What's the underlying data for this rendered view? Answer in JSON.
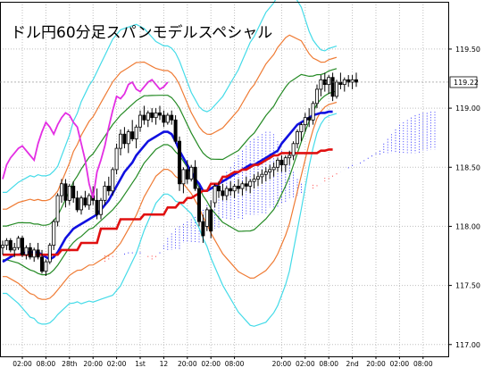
{
  "chart_data": {
    "type": "candlestick",
    "title": "ドル円60分足スパンモデルスペシャル",
    "ylim": [
      116.9,
      119.9
    ],
    "yticks": [
      117.0,
      117.5,
      118.0,
      118.5,
      119.0,
      119.5
    ],
    "ytick_labels": [
      "117.00",
      "117.50",
      "118.00",
      "118.50",
      "119.00",
      "119.50"
    ],
    "last_price": 119.22,
    "last_price_label": "119.22",
    "bar_count": 114,
    "grid": true,
    "x_labels": [
      {
        "label": "02:00",
        "bar": 5
      },
      {
        "label": "08:00",
        "bar": 11
      },
      {
        "label": "28th",
        "bar": 17
      },
      {
        "label": "20:00",
        "bar": 23
      },
      {
        "label": "02:00",
        "bar": 29
      },
      {
        "label": "1st",
        "bar": 35
      },
      {
        "label": "12",
        "bar": 41
      },
      {
        "label": "20:00",
        "bar": 47
      },
      {
        "label": "02:00",
        "bar": 53
      },
      {
        "label": "08:00",
        "bar": 59
      },
      {
        "label": "20:00",
        "bar": 71
      },
      {
        "label": "02:00",
        "bar": 77
      },
      {
        "label": "08:00",
        "bar": 83
      },
      {
        "label": "2nd",
        "bar": 89
      },
      {
        "label": "20:00",
        "bar": 95
      },
      {
        "label": "02:00",
        "bar": 101
      },
      {
        "label": "08:00",
        "bar": 107
      }
    ],
    "candles": [
      [
        0,
        117.82,
        117.88,
        117.76,
        117.84
      ],
      [
        1,
        117.84,
        117.9,
        117.8,
        117.88
      ],
      [
        2,
        117.88,
        117.9,
        117.78,
        117.8
      ],
      [
        3,
        117.8,
        117.86,
        117.74,
        117.82
      ],
      [
        4,
        117.82,
        117.92,
        117.8,
        117.9
      ],
      [
        5,
        117.9,
        117.92,
        117.74,
        117.76
      ],
      [
        6,
        117.76,
        117.84,
        117.72,
        117.82
      ],
      [
        7,
        117.82,
        117.86,
        117.72,
        117.74
      ],
      [
        8,
        117.74,
        117.82,
        117.7,
        117.8
      ],
      [
        9,
        117.8,
        117.86,
        117.72,
        117.74
      ],
      [
        10,
        117.74,
        117.8,
        117.6,
        117.62
      ],
      [
        11,
        117.62,
        117.72,
        117.58,
        117.7
      ],
      [
        12,
        117.7,
        117.86,
        117.68,
        117.84
      ],
      [
        13,
        117.84,
        118.06,
        117.8,
        118.04
      ],
      [
        14,
        118.04,
        118.28,
        118.0,
        118.26
      ],
      [
        15,
        118.26,
        118.4,
        118.2,
        118.36
      ],
      [
        16,
        118.36,
        118.4,
        118.16,
        118.22
      ],
      [
        17,
        118.22,
        118.36,
        118.18,
        118.34
      ],
      [
        18,
        118.34,
        118.38,
        118.2,
        118.24
      ],
      [
        19,
        118.24,
        118.3,
        118.12,
        118.14
      ],
      [
        20,
        118.14,
        118.26,
        118.1,
        118.24
      ],
      [
        21,
        118.24,
        118.3,
        118.16,
        118.18
      ],
      [
        22,
        118.18,
        118.28,
        118.14,
        118.26
      ],
      [
        23,
        118.26,
        118.34,
        118.18,
        118.22
      ],
      [
        24,
        118.22,
        118.32,
        118.06,
        118.1
      ],
      [
        25,
        118.1,
        118.24,
        118.06,
        118.22
      ],
      [
        26,
        118.22,
        118.38,
        118.18,
        118.34
      ],
      [
        27,
        118.34,
        118.42,
        118.26,
        118.3
      ],
      [
        28,
        118.3,
        118.5,
        118.26,
        118.48
      ],
      [
        29,
        118.48,
        118.7,
        118.44,
        118.66
      ],
      [
        30,
        118.66,
        118.82,
        118.6,
        118.78
      ],
      [
        31,
        118.78,
        118.84,
        118.66,
        118.7
      ],
      [
        32,
        118.7,
        118.82,
        118.62,
        118.8
      ],
      [
        33,
        118.8,
        118.9,
        118.72,
        118.74
      ],
      [
        34,
        118.74,
        118.86,
        118.66,
        118.84
      ],
      [
        35,
        118.84,
        118.98,
        118.8,
        118.94
      ],
      [
        36,
        118.94,
        119.02,
        118.86,
        118.9
      ],
      [
        37,
        118.9,
        118.98,
        118.84,
        118.96
      ],
      [
        38,
        118.96,
        119.0,
        118.88,
        118.92
      ],
      [
        39,
        118.92,
        119.0,
        118.86,
        118.96
      ],
      [
        40,
        118.96,
        119.02,
        118.9,
        118.94
      ],
      [
        41,
        118.94,
        118.98,
        118.84,
        118.88
      ],
      [
        42,
        118.88,
        118.96,
        118.86,
        118.94
      ],
      [
        43,
        118.94,
        118.98,
        118.86,
        118.9
      ],
      [
        44,
        118.9,
        118.94,
        118.7,
        118.72
      ],
      [
        45,
        118.72,
        118.76,
        118.3,
        118.36
      ],
      [
        46,
        118.36,
        118.5,
        118.28,
        118.48
      ],
      [
        47,
        118.48,
        118.56,
        118.36,
        118.4
      ],
      [
        48,
        118.4,
        118.52,
        118.38,
        118.5
      ],
      [
        49,
        118.5,
        118.56,
        118.3,
        118.32
      ],
      [
        50,
        118.32,
        118.34,
        118.0,
        118.04
      ],
      [
        51,
        118.04,
        118.1,
        117.86,
        117.92
      ],
      [
        52,
        118.0,
        118.16,
        117.96,
        118.14
      ],
      [
        53,
        118.14,
        118.22,
        117.9,
        117.96
      ],
      [
        54,
        118.2,
        118.36,
        118.16,
        118.34
      ],
      [
        55,
        118.34,
        118.38,
        118.24,
        118.3
      ],
      [
        56,
        118.3,
        118.36,
        118.22,
        118.26
      ],
      [
        57,
        118.26,
        118.34,
        118.22,
        118.32
      ],
      [
        58,
        118.32,
        118.38,
        118.26,
        118.3
      ],
      [
        59,
        118.3,
        118.36,
        118.24,
        118.34
      ],
      [
        60,
        118.34,
        118.4,
        118.28,
        118.32
      ],
      [
        61,
        118.32,
        118.38,
        118.26,
        118.36
      ],
      [
        62,
        118.36,
        118.42,
        118.3,
        118.34
      ],
      [
        63,
        118.34,
        118.4,
        118.28,
        118.38
      ],
      [
        64,
        118.38,
        118.44,
        118.32,
        118.4
      ],
      [
        65,
        118.4,
        118.46,
        118.34,
        118.42
      ],
      [
        66,
        118.42,
        118.48,
        118.36,
        118.44
      ],
      [
        67,
        118.44,
        118.5,
        118.38,
        118.46
      ],
      [
        68,
        118.46,
        118.52,
        118.4,
        118.48
      ],
      [
        69,
        118.48,
        118.54,
        118.42,
        118.5
      ],
      [
        70,
        118.5,
        118.58,
        118.46,
        118.56
      ],
      [
        71,
        118.56,
        118.6,
        118.46,
        118.52
      ],
      [
        72,
        118.52,
        118.6,
        118.46,
        118.58
      ],
      [
        73,
        118.58,
        118.64,
        118.52,
        118.6
      ],
      [
        74,
        118.6,
        118.72,
        118.56,
        118.7
      ],
      [
        75,
        118.7,
        118.82,
        118.66,
        118.8
      ],
      [
        76,
        118.8,
        118.88,
        118.72,
        118.86
      ],
      [
        77,
        118.86,
        118.96,
        118.8,
        118.92
      ],
      [
        78,
        118.92,
        119.0,
        118.84,
        118.9
      ],
      [
        79,
        118.9,
        119.06,
        118.86,
        119.04
      ],
      [
        80,
        119.04,
        119.2,
        119.0,
        119.16
      ],
      [
        81,
        119.16,
        119.28,
        119.1,
        119.24
      ],
      [
        82,
        119.24,
        119.3,
        119.14,
        119.2
      ],
      [
        83,
        119.2,
        119.28,
        119.12,
        119.26
      ],
      [
        84,
        119.26,
        119.3,
        119.06,
        119.1
      ],
      [
        85,
        119.1,
        119.24,
        119.08,
        119.22
      ],
      [
        86,
        119.22,
        119.3,
        119.16,
        119.2
      ],
      [
        87,
        119.2,
        119.26,
        119.14,
        119.24
      ],
      [
        88,
        119.24,
        119.28,
        119.18,
        119.22
      ],
      [
        89,
        119.22,
        119.28,
        119.16,
        119.24
      ],
      [
        90,
        119.24,
        119.3,
        119.18,
        119.22
      ]
    ],
    "span_a": [
      117.7,
      117.72,
      117.74,
      117.76,
      117.76,
      117.77,
      117.78,
      117.78,
      117.78,
      117.78,
      117.76,
      117.74,
      117.72,
      117.74,
      117.78,
      117.84,
      117.9,
      117.94,
      117.98,
      118.0,
      118.02,
      118.04,
      118.06,
      118.08,
      118.1,
      118.14,
      118.18,
      118.22,
      118.28,
      118.34,
      118.4,
      118.46,
      118.5,
      118.54,
      118.6,
      118.64,
      118.68,
      118.72,
      118.74,
      118.76,
      118.78,
      118.8,
      118.8,
      118.78,
      118.72,
      118.64,
      118.58,
      118.52,
      118.46,
      118.4,
      118.36,
      118.3,
      118.3,
      118.32,
      118.34,
      118.36,
      118.38,
      118.4,
      118.42,
      118.44,
      118.46,
      118.48,
      118.5,
      118.52,
      118.52,
      118.54,
      118.56,
      118.58,
      118.6,
      118.62,
      118.64,
      118.7,
      118.74,
      118.78,
      118.82,
      118.86,
      118.88,
      118.9,
      118.92,
      118.94,
      118.95,
      118.96,
      118.96,
      118.97,
      118.97
    ],
    "span_b": [
      117.76,
      117.76,
      117.76,
      117.76,
      117.76,
      117.76,
      117.76,
      117.76,
      117.76,
      117.76,
      117.76,
      117.76,
      117.76,
      117.76,
      117.76,
      117.8,
      117.8,
      117.8,
      117.8,
      117.8,
      117.86,
      117.86,
      117.86,
      117.86,
      117.86,
      117.98,
      117.98,
      117.98,
      117.98,
      117.98,
      118.06,
      118.06,
      118.06,
      118.06,
      118.06,
      118.06,
      118.1,
      118.1,
      118.1,
      118.1,
      118.1,
      118.1,
      118.16,
      118.16,
      118.16,
      118.2,
      118.2,
      118.24,
      118.24,
      118.26,
      118.28,
      118.3,
      118.3,
      118.36,
      118.36,
      118.36,
      118.42,
      118.42,
      118.44,
      118.46,
      118.46,
      118.48,
      118.48,
      118.5,
      118.52,
      118.52,
      118.54,
      118.56,
      118.58,
      118.6,
      118.6,
      118.62,
      118.62,
      118.62,
      118.62,
      118.62,
      118.62,
      118.62,
      118.62,
      118.62,
      118.62,
      118.64,
      118.64,
      118.65,
      118.65
    ],
    "chikou": [
      118.4,
      118.52,
      118.58,
      118.62,
      118.66,
      118.68,
      118.64,
      118.6,
      118.56,
      118.7,
      118.8,
      118.88,
      118.84,
      118.78,
      118.86,
      118.92,
      118.96,
      118.94,
      118.88,
      118.84,
      118.7,
      118.56,
      118.36,
      118.24,
      118.46,
      118.56,
      118.68,
      118.84,
      118.98,
      119.1,
      119.08,
      119.12,
      119.2,
      119.22,
      119.16,
      119.14,
      119.18,
      119.22,
      119.24,
      119.2,
      119.16,
      119.18,
      119.22
    ],
    "ma_center": [
      117.86,
      117.86,
      117.86,
      117.86,
      117.86,
      117.85,
      117.84,
      117.83,
      117.82,
      117.81,
      117.8,
      117.8,
      117.81,
      117.84,
      117.88,
      117.94,
      118.0,
      118.06,
      118.12,
      118.16,
      118.2,
      118.24,
      118.28,
      118.3,
      118.34,
      118.38,
      118.42,
      118.46,
      118.5,
      118.54,
      118.58,
      118.62,
      118.66,
      118.7,
      118.74,
      118.78,
      118.82,
      118.84,
      118.86,
      118.88,
      118.89,
      118.9,
      118.9,
      118.88,
      118.84,
      118.8,
      118.74,
      118.68,
      118.62,
      118.56,
      118.5,
      118.44,
      118.4,
      118.36,
      118.34,
      118.32,
      118.3,
      118.3,
      118.3,
      118.3,
      118.3,
      118.32,
      118.34,
      118.36,
      118.38,
      118.42,
      118.46,
      118.5,
      118.54,
      118.58,
      118.64,
      118.7,
      118.76,
      118.82,
      118.88,
      118.94,
      119.0,
      119.04,
      119.08,
      119.12,
      119.16,
      119.18,
      119.2,
      119.22,
      119.23,
      119.24
    ],
    "bb_sigma": [
      0.15,
      0.15,
      0.16,
      0.17,
      0.18,
      0.19,
      0.2,
      0.21,
      0.21,
      0.22,
      0.22,
      0.22,
      0.22,
      0.22,
      0.22,
      0.23,
      0.24,
      0.25,
      0.27,
      0.28,
      0.3,
      0.31,
      0.32,
      0.33,
      0.34,
      0.35,
      0.36,
      0.37,
      0.38,
      0.38,
      0.38,
      0.37,
      0.36,
      0.35,
      0.34,
      0.32,
      0.3,
      0.28,
      0.26,
      0.24,
      0.23,
      0.22,
      0.22,
      0.22,
      0.22,
      0.21,
      0.2,
      0.19,
      0.18,
      0.18,
      0.18,
      0.19,
      0.2,
      0.22,
      0.24,
      0.26,
      0.28,
      0.3,
      0.32,
      0.34,
      0.36,
      0.38,
      0.4,
      0.42,
      0.43,
      0.44,
      0.45,
      0.46,
      0.46,
      0.46,
      0.46,
      0.45,
      0.44,
      0.42,
      0.38,
      0.34,
      0.3,
      0.25,
      0.2,
      0.16,
      0.13,
      0.11,
      0.1,
      0.1,
      0.1,
      0.1
    ]
  }
}
